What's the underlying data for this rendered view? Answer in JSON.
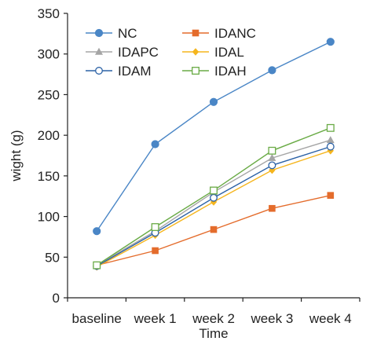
{
  "chart_data": {
    "type": "line",
    "title": "",
    "xlabel": "Time",
    "ylabel": "wight (g)",
    "ylim": [
      0,
      350
    ],
    "yticks": [
      0,
      50,
      100,
      150,
      200,
      250,
      300,
      350
    ],
    "categories": [
      "baseline",
      "week 1",
      "week 2",
      "week 3",
      "week 4"
    ],
    "grid": false,
    "legend_position": "top-left",
    "series": [
      {
        "name": "NC",
        "color": "#4a86c6",
        "marker": "circle-filled",
        "values": [
          82,
          189,
          241,
          280,
          315
        ]
      },
      {
        "name": "IDANC",
        "color": "#e46c2c",
        "marker": "square-filled",
        "values": [
          40,
          58,
          84,
          110,
          126
        ]
      },
      {
        "name": "IDAPC",
        "color": "#a5a5a5",
        "marker": "triangle-filled",
        "values": [
          40,
          82,
          130,
          172,
          194
        ]
      },
      {
        "name": "IDAL",
        "color": "#f5b51d",
        "marker": "diamond-filled",
        "values": [
          38,
          77,
          118,
          157,
          181
        ]
      },
      {
        "name": "IDAM",
        "color": "#2c62a6",
        "marker": "circle-open",
        "values": [
          39,
          80,
          123,
          163,
          186
        ]
      },
      {
        "name": "IDAH",
        "color": "#6aab46",
        "marker": "square-open",
        "values": [
          40,
          87,
          132,
          181,
          209
        ]
      }
    ]
  }
}
